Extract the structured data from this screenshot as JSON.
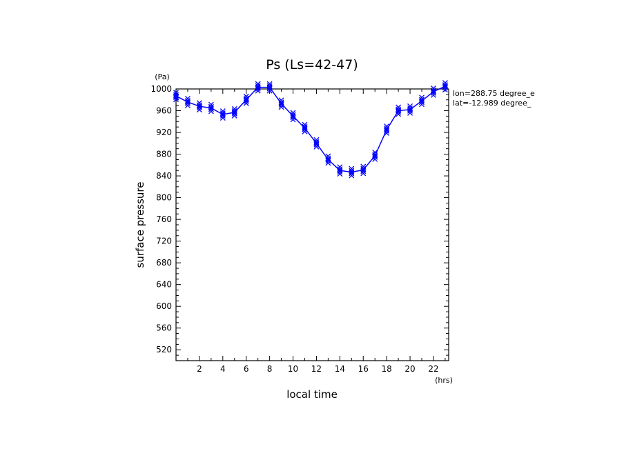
{
  "chart_data": {
    "type": "line",
    "title": "Ps (Ls=42-47)",
    "xlabel": "local time",
    "ylabel": "surface pressure",
    "xunit": "(hrs)",
    "yunit": "(Pa)",
    "xlim": [
      0,
      23.3
    ],
    "ylim": [
      500,
      1000
    ],
    "xticks": [
      2,
      4,
      6,
      8,
      10,
      12,
      14,
      16,
      18,
      20,
      22
    ],
    "yticks": [
      520,
      560,
      600,
      640,
      680,
      720,
      760,
      800,
      840,
      880,
      920,
      960,
      1000
    ],
    "annotations": [
      "lon=288.75 degree_e",
      "lat=-12.989 degree_"
    ],
    "line_color": "#0000ff",
    "series": [
      {
        "x": [
          0,
          1,
          2,
          3,
          4,
          5,
          6,
          7,
          8,
          9,
          10,
          11,
          12,
          13,
          14,
          15,
          16,
          17,
          18,
          19,
          20,
          21,
          22,
          23
        ],
        "values": [
          987,
          976,
          968,
          965,
          953,
          957,
          980,
          1003,
          1003,
          973,
          950,
          928,
          900,
          870,
          850,
          847,
          851,
          877,
          925,
          960,
          962,
          978,
          995,
          1005
        ]
      }
    ]
  }
}
